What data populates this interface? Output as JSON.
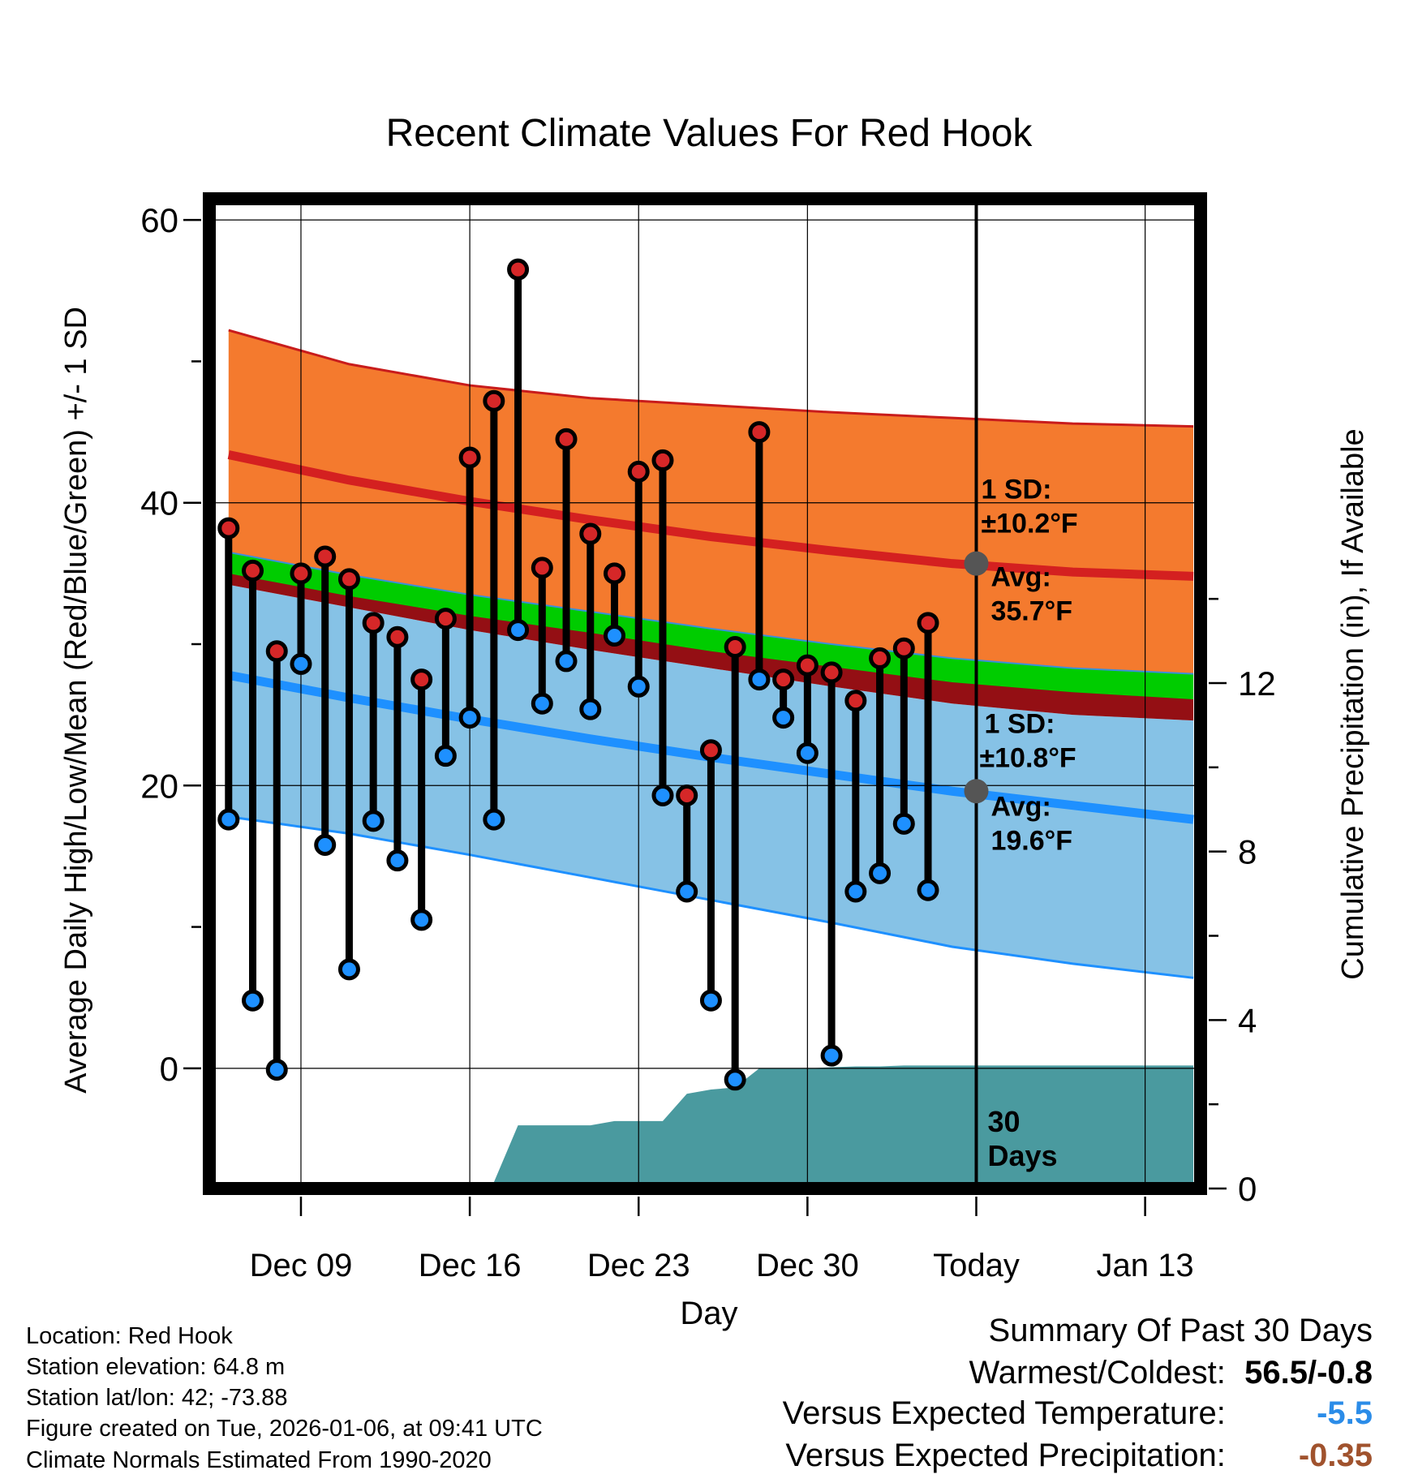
{
  "chart_data": {
    "type": "line",
    "title": "Recent Climate Values For Red Hook",
    "xlabel": "Day",
    "ylabel": "Average Daily High/Low/Mean (Red/Blue/Green) +/- 1 SD",
    "y2label": "Cumulative Precipitation (in), If Available",
    "xlim": [
      -0.8,
      40.3
    ],
    "ylim": [
      -8.5,
      61.5
    ],
    "y2lim": [
      0,
      23.5
    ],
    "x_ticks": [
      {
        "x": 3,
        "label": "Dec 09"
      },
      {
        "x": 10,
        "label": "Dec 16"
      },
      {
        "x": 17,
        "label": "Dec 23"
      },
      {
        "x": 24,
        "label": "Dec 30"
      },
      {
        "x": 31,
        "label": "Today"
      },
      {
        "x": 38,
        "label": "Jan 13"
      }
    ],
    "y_ticks": [
      0,
      20,
      40,
      60
    ],
    "y2_ticks": [
      0,
      4,
      8,
      12
    ],
    "today_x": 31,
    "days_label": "30 Days",
    "normals": {
      "x": [
        0,
        5,
        10,
        15,
        20,
        25,
        30,
        35,
        40
      ],
      "high_upper": [
        52.2,
        49.8,
        48.3,
        47.4,
        46.9,
        46.4,
        46.0,
        45.6,
        45.4
      ],
      "high_mean": [
        43.4,
        41.6,
        40.1,
        38.8,
        37.6,
        36.6,
        35.7,
        35.1,
        34.8
      ],
      "mean_upper": [
        36.5,
        34.9,
        33.5,
        32.3,
        31.1,
        30.0,
        29.0,
        28.3,
        27.9
      ],
      "mean_lower": [
        35.0,
        33.4,
        32.0,
        30.8,
        29.5,
        28.4,
        27.3,
        26.6,
        26.1
      ],
      "low_upper": [
        34.2,
        32.6,
        31.0,
        29.6,
        28.3,
        27.0,
        25.8,
        25.0,
        24.6
      ],
      "low_mean": [
        27.8,
        26.2,
        24.7,
        23.3,
        22.0,
        20.8,
        19.6,
        18.6,
        17.6
      ],
      "low_lower": [
        17.8,
        16.6,
        15.1,
        13.5,
        11.9,
        10.3,
        8.6,
        7.4,
        6.4
      ]
    },
    "annotations": {
      "high_sd_label": "1 SD:",
      "high_sd_value": "±10.2°F",
      "high_avg_label": "Avg:",
      "high_avg_value": "35.7°F",
      "high_avg_y": 35.7,
      "low_sd_label": "1 SD:",
      "low_sd_value": "±10.8°F",
      "low_avg_label": "Avg:",
      "low_avg_value": "19.6°F",
      "low_avg_y": 19.6
    },
    "series": [
      {
        "name": "Daily High",
        "color": "#d62728",
        "x": [
          0,
          1,
          2,
          3,
          4,
          5,
          6,
          7,
          8,
          9,
          10,
          11,
          12,
          13,
          14,
          15,
          16,
          17,
          18,
          19,
          20,
          21,
          22,
          23,
          24,
          25,
          26,
          27,
          28,
          29
        ],
        "values": [
          38.2,
          35.2,
          29.5,
          35.0,
          36.2,
          34.6,
          31.5,
          30.5,
          27.5,
          31.8,
          43.2,
          47.2,
          56.5,
          35.4,
          44.5,
          37.8,
          35.0,
          42.2,
          43.0,
          19.3,
          22.5,
          29.8,
          45.0,
          27.5,
          28.5,
          28.0,
          26.0,
          29.0,
          29.7,
          31.5
        ]
      },
      {
        "name": "Daily Low",
        "color": "#1e90ff",
        "x": [
          0,
          1,
          2,
          3,
          4,
          5,
          6,
          7,
          8,
          9,
          10,
          11,
          12,
          13,
          14,
          15,
          16,
          17,
          18,
          19,
          20,
          21,
          22,
          23,
          24,
          25,
          26,
          27,
          28,
          29
        ],
        "values": [
          17.6,
          4.8,
          -0.1,
          28.6,
          15.8,
          7.0,
          17.5,
          14.7,
          10.5,
          22.1,
          24.8,
          17.6,
          31.0,
          25.8,
          28.8,
          25.4,
          30.6,
          27.0,
          19.3,
          12.5,
          4.8,
          -0.8,
          27.5,
          24.8,
          22.3,
          0.9,
          12.5,
          13.8,
          17.3,
          12.6
        ]
      },
      {
        "name": "Cumulative Precipitation",
        "color": "#4a9a9f",
        "axis": "y2",
        "x": [
          0,
          1,
          2,
          3,
          4,
          5,
          6,
          7,
          8,
          9,
          10,
          11,
          12,
          13,
          14,
          15,
          16,
          17,
          18,
          19,
          20,
          21,
          22,
          23,
          24,
          25,
          26,
          27,
          28,
          29,
          30,
          40
        ],
        "values": [
          0,
          0,
          0,
          0.05,
          0.05,
          0.05,
          0.05,
          0.15,
          0.15,
          0.15,
          0.15,
          0.15,
          1.5,
          1.5,
          1.5,
          1.5,
          1.6,
          1.6,
          1.6,
          2.25,
          2.35,
          2.4,
          2.85,
          2.85,
          2.85,
          2.88,
          2.9,
          2.9,
          2.92,
          2.92,
          2.92,
          2.92
        ]
      }
    ]
  },
  "footer": {
    "location": "Location: Red Hook",
    "elevation": "Station elevation: 64.8 m",
    "latlon": "Station lat/lon: 42; -73.88",
    "created": "Figure created on Tue, 2026-01-06, at 09:41 UTC",
    "normals": "Climate Normals Estimated From 1990-2020"
  },
  "summary": {
    "title": "Summary Of Past 30 Days",
    "warmest_label": "Warmest/Coldest:",
    "warmest_value": "56.5/-0.8",
    "temp_label": "Versus Expected Temperature:",
    "temp_value": "-5.5",
    "temp_color": "#2b8ce8",
    "precip_label": "Versus Expected Precipitation:",
    "precip_value": "-0.35",
    "precip_color": "#a0522d"
  },
  "colors": {
    "high_band": "#f47a2e",
    "low_band": "#86c2e6",
    "dark_band": "#940f14",
    "mean_band": "#00cc00",
    "high_line": "#d42020",
    "low_line": "#1e90ff",
    "precip": "#4a9a9f",
    "marker_gray": "#555555"
  }
}
